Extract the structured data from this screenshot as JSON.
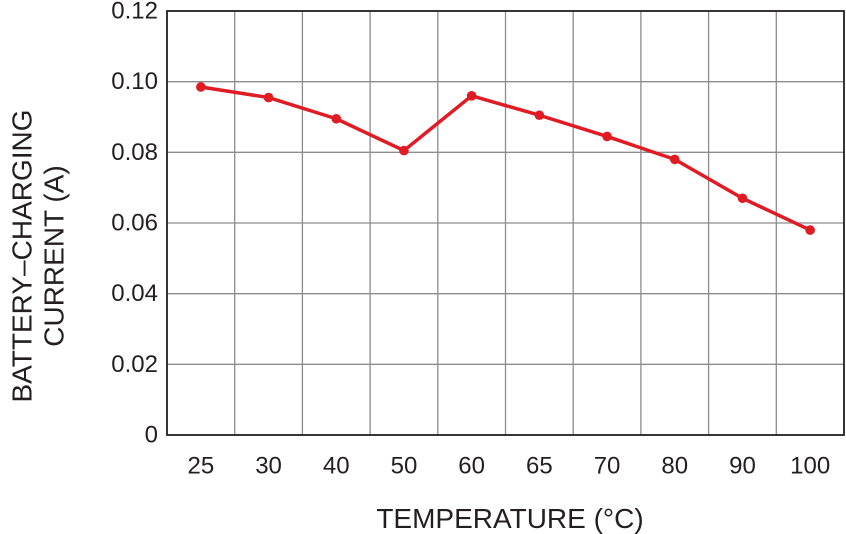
{
  "chart_data": {
    "type": "line",
    "title": "",
    "xlabel": "TEMPERATURE (°C)",
    "ylabel_lines": [
      "BATTERY–CHARGING",
      "CURRENT (A)"
    ],
    "categories": [
      "25",
      "30",
      "40",
      "50",
      "60",
      "65",
      "70",
      "80",
      "90",
      "100"
    ],
    "series": [
      {
        "values": [
          0.0985,
          0.0955,
          0.0895,
          0.0805,
          0.096,
          0.0905,
          0.0845,
          0.078,
          0.067,
          0.058
        ],
        "color": "#e01b24"
      }
    ],
    "yticks": [
      "0",
      "0.02",
      "0.04",
      "0.06",
      "0.08",
      "0.10",
      "0.12"
    ],
    "ylim": [
      0,
      0.12
    ],
    "grid": true,
    "legend": "none"
  }
}
